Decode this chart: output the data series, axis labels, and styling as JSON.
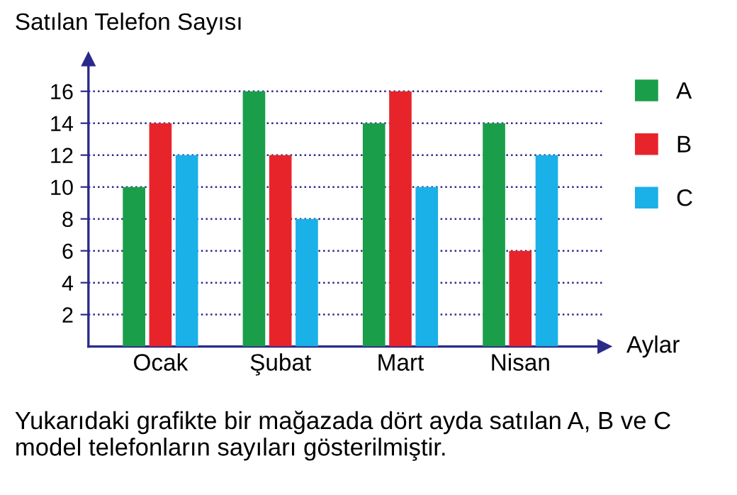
{
  "chart_data": {
    "type": "bar",
    "ylabel": "Satılan Telefon Sayısı",
    "xlabel": "Aylar",
    "categories": [
      "Ocak",
      "Şubat",
      "Mart",
      "Nisan"
    ],
    "series": [
      {
        "name": "A",
        "color": "#1a9e4a",
        "values": [
          10,
          16,
          14,
          14
        ]
      },
      {
        "name": "B",
        "color": "#e8242b",
        "values": [
          14,
          12,
          16,
          6
        ]
      },
      {
        "name": "C",
        "color": "#1ab0e8",
        "values": [
          12,
          8,
          10,
          12
        ]
      }
    ],
    "ylim": [
      0,
      18
    ],
    "yticks": [
      2,
      4,
      6,
      8,
      10,
      12,
      14,
      16
    ],
    "grid": "y",
    "legend": "top right",
    "annotations": [
      "Yukarıdaki grafikte bir mağazada dört ayda satılan A, B ve C model telefonların sayıları gösterilmiştir."
    ]
  }
}
